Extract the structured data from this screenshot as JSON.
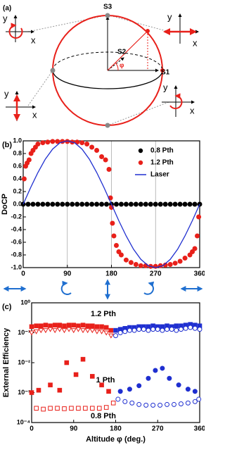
{
  "diagram": {
    "label": "(a)",
    "s1": "S1",
    "s2": "S2",
    "s3": "S3",
    "phi": "φ",
    "insets": [
      {
        "x": "x",
        "y": "y"
      },
      {
        "x": "x",
        "y": "y"
      },
      {
        "x": "x",
        "y": "y"
      },
      {
        "x": "x",
        "y": "y"
      }
    ]
  },
  "chart_data": [
    {
      "type": "scatter",
      "panel_label": "(b)",
      "ylabel": "DoCP",
      "xlim": [
        0,
        360
      ],
      "xticks": [
        0,
        90,
        180,
        270,
        360
      ],
      "xgrid": true,
      "ylim": [
        -1,
        1
      ],
      "yticks": [
        {
          "value": -1,
          "label": "-1.0"
        },
        -0.8,
        -0.6,
        -0.4,
        -0.2,
        {
          "value": 0,
          "label": "0.0"
        },
        0.2,
        0.4,
        0.6,
        0.8,
        {
          "value": 1,
          "label": "1.0"
        }
      ],
      "legend": "upper right",
      "series": [
        {
          "name": "0.8 Pth",
          "color": "#000000",
          "marker": "circle",
          "filled": true,
          "x": [
            0,
            10,
            20,
            30,
            40,
            50,
            60,
            70,
            80,
            90,
            100,
            110,
            120,
            130,
            140,
            150,
            160,
            170,
            180,
            190,
            200,
            210,
            220,
            230,
            240,
            250,
            260,
            270,
            280,
            290,
            300,
            310,
            320,
            330,
            340,
            350,
            360
          ],
          "values": [
            0,
            0,
            0,
            0,
            0,
            0,
            0,
            0,
            0,
            0,
            0,
            0,
            0,
            0,
            0,
            0,
            0,
            0,
            0,
            0,
            0,
            0,
            0,
            0,
            0,
            0,
            0,
            0,
            0,
            0,
            0,
            0,
            0,
            0,
            0,
            0,
            0
          ]
        },
        {
          "name": "1.2 Pth",
          "color": "#e8201a",
          "marker": "circle",
          "filled": true,
          "x": [
            2,
            5,
            8,
            12,
            16,
            20,
            25,
            30,
            40,
            50,
            60,
            70,
            80,
            90,
            100,
            110,
            120,
            130,
            140,
            150,
            160,
            168,
            175,
            178,
            180,
            182,
            185,
            190,
            195,
            200,
            210,
            220,
            230,
            240,
            250,
            260,
            270,
            280,
            290,
            300,
            310,
            320,
            330,
            340,
            345,
            350,
            355,
            358
          ],
          "values": [
            0.4,
            0.6,
            0.65,
            0.7,
            0.8,
            0.85,
            0.9,
            0.95,
            0.97,
            0.98,
            0.99,
            0.99,
            0.99,
            0.99,
            0.98,
            0.98,
            0.97,
            0.95,
            0.9,
            0.85,
            0.75,
            0.7,
            0.55,
            0.1,
            -0.05,
            -0.3,
            -0.5,
            -0.65,
            -0.75,
            -0.8,
            -0.88,
            -0.92,
            -0.95,
            -0.97,
            -0.97,
            -0.98,
            -0.98,
            -0.97,
            -0.96,
            -0.95,
            -0.93,
            -0.9,
            -0.85,
            -0.8,
            -0.75,
            -0.7,
            -0.5,
            -0.2
          ]
        },
        {
          "name": "Laser",
          "color": "#1f2fd0",
          "mode": "line",
          "x": [
            0,
            15,
            30,
            45,
            60,
            75,
            90,
            105,
            120,
            135,
            150,
            165,
            180,
            195,
            210,
            225,
            240,
            255,
            270,
            285,
            300,
            315,
            330,
            345,
            360
          ],
          "values": [
            0,
            0.26,
            0.5,
            0.71,
            0.87,
            0.97,
            1,
            0.97,
            0.87,
            0.71,
            0.5,
            0.26,
            0,
            -0.26,
            -0.5,
            -0.71,
            -0.87,
            -0.97,
            -1,
            -0.97,
            -0.87,
            -0.71,
            -0.5,
            -0.26,
            0
          ]
        }
      ]
    },
    {
      "type": "scatter",
      "panel_label": "(c)",
      "ylabel": "External Efficiency",
      "xlabel": "Altitude φ (deg.)",
      "xlim": [
        0,
        360
      ],
      "xticks": [
        0,
        90,
        180,
        270,
        360
      ],
      "ylim": [
        0.0001,
        1
      ],
      "log": true,
      "yticks": [
        {
          "value": 0.0001,
          "label": "10⁻⁴"
        },
        {
          "value": 0.001,
          "label": "10⁻³"
        },
        {
          "value": 0.01,
          "label": "10⁻²"
        },
        {
          "value": 0.1,
          "label": "10⁻¹"
        },
        {
          "value": 1,
          "label": "10⁰"
        }
      ],
      "annotations": [
        "1.2 Pth",
        "1 Pth",
        "0.8 Pth"
      ],
      "series": [
        {
          "color": "#e8201a",
          "marker": "square",
          "filled": true,
          "x": [
            0,
            10,
            20,
            30,
            40,
            50,
            60,
            70,
            80,
            90,
            100,
            110,
            120,
            130,
            140,
            150,
            160,
            170
          ],
          "values": [
            0.16,
            0.17,
            0.17,
            0.18,
            0.17,
            0.18,
            0.18,
            0.17,
            0.18,
            0.18,
            0.17,
            0.18,
            0.17,
            0.17,
            0.16,
            0.16,
            0.15,
            0.12
          ]
        },
        {
          "color": "#e8201a",
          "marker": "triangle",
          "filled": false,
          "x": [
            0,
            10,
            20,
            30,
            40,
            50,
            60,
            70,
            80,
            90,
            100,
            110,
            120,
            130,
            140,
            150,
            160,
            170
          ],
          "values": [
            0.1,
            0.11,
            0.12,
            0.12,
            0.13,
            0.12,
            0.13,
            0.12,
            0.13,
            0.12,
            0.13,
            0.12,
            0.12,
            0.12,
            0.11,
            0.11,
            0.1,
            0.08
          ]
        },
        {
          "color": "#1f2fd0",
          "marker": "square",
          "filled": true,
          "x": [
            180,
            190,
            200,
            210,
            220,
            230,
            240,
            250,
            260,
            270,
            280,
            290,
            300,
            310,
            320,
            330,
            340,
            350,
            360
          ],
          "values": [
            0.12,
            0.13,
            0.14,
            0.15,
            0.15,
            0.16,
            0.16,
            0.16,
            0.17,
            0.16,
            0.16,
            0.17,
            0.16,
            0.17,
            0.17,
            0.18,
            0.19,
            0.18,
            0.17
          ]
        },
        {
          "color": "#1f2fd0",
          "marker": "circle",
          "filled": false,
          "x": [
            180,
            190,
            200,
            210,
            220,
            230,
            240,
            250,
            260,
            270,
            280,
            290,
            300,
            310,
            320,
            330,
            340,
            350,
            360
          ],
          "values": [
            0.08,
            0.1,
            0.11,
            0.12,
            0.12,
            0.13,
            0.13,
            0.12,
            0.13,
            0.13,
            0.12,
            0.13,
            0.13,
            0.12,
            0.13,
            0.14,
            0.15,
            0.14,
            0.13
          ]
        },
        {
          "color": "#e8201a",
          "marker": "square",
          "filled": true,
          "x": [
            0,
            15,
            40,
            60,
            75,
            95,
            110,
            130,
            150,
            165
          ],
          "values": [
            0.001,
            0.0012,
            0.0018,
            0.0012,
            0.01,
            0.004,
            0.013,
            0.0035,
            0.0018,
            0.0011
          ]
        },
        {
          "color": "#1f2fd0",
          "marker": "circle",
          "filled": true,
          "x": [
            190,
            210,
            230,
            250,
            265,
            280,
            295,
            315,
            335,
            350
          ],
          "values": [
            0.0011,
            0.0013,
            0.0017,
            0.003,
            0.0055,
            0.0065,
            0.003,
            0.0018,
            0.0013,
            0.0011
          ]
        },
        {
          "color": "#e8201a",
          "marker": "square",
          "filled": false,
          "x": [
            10,
            25,
            40,
            55,
            70,
            85,
            100,
            115,
            130,
            145,
            160,
            175
          ],
          "values": [
            0.0003,
            0.00028,
            0.0003,
            0.0003,
            0.00029,
            0.0003,
            0.0003,
            0.0003,
            0.0003,
            0.0003,
            0.00032,
            0.00045
          ]
        },
        {
          "color": "#1f2fd0",
          "marker": "circle",
          "filled": false,
          "x": [
            185,
            200,
            215,
            230,
            245,
            260,
            275,
            290,
            305,
            320,
            335,
            350,
            358
          ],
          "values": [
            0.0006,
            0.0005,
            0.00045,
            0.0004,
            0.00038,
            0.00038,
            0.00038,
            0.0004,
            0.0004,
            0.00042,
            0.00045,
            0.0005,
            0.0006
          ]
        }
      ]
    }
  ]
}
